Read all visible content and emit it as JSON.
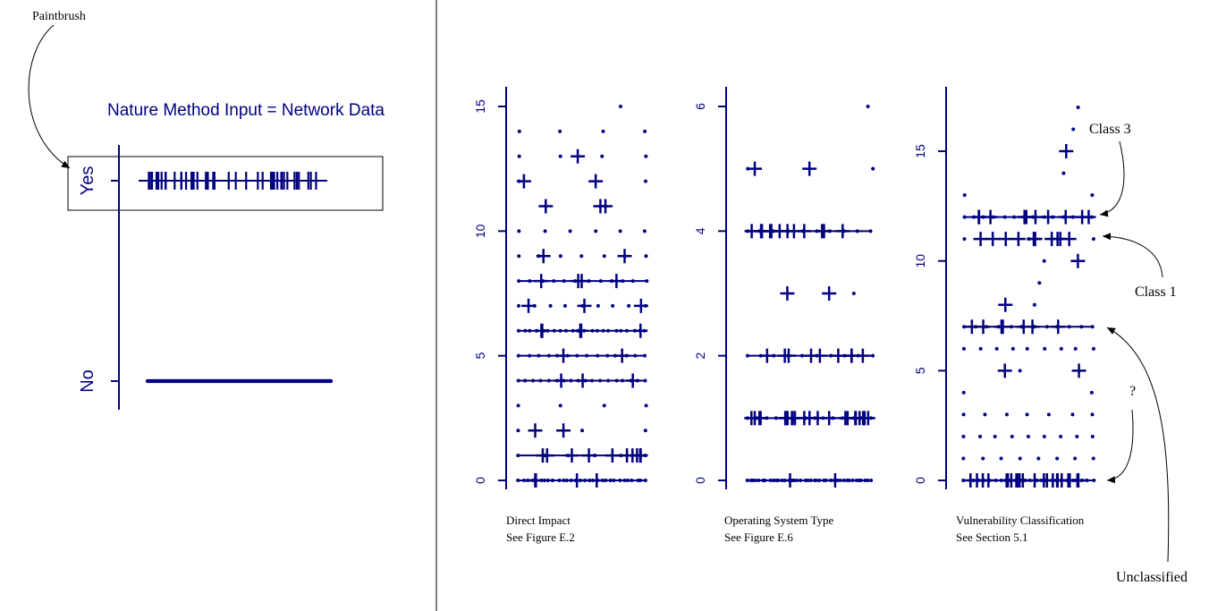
{
  "annotations": {
    "paintbrush": "Paintbrush",
    "class3": "Class 3",
    "class1": "Class 1",
    "question": "?",
    "unclassified": "Unclassified"
  },
  "colors": {
    "marks": "#000080",
    "annotation": "#000000"
  },
  "chart_data": [
    {
      "type": "scatter",
      "title": "Nature Method Input = Network Data",
      "categories": [
        "No",
        "Yes"
      ],
      "marker_legend": "dot = 0, plus = 1",
      "rows": [
        {
          "category": "Yes",
          "pluses": 45,
          "dots": 0
        },
        {
          "category": "No",
          "pluses": 0,
          "dots": 110
        }
      ]
    },
    {
      "type": "scatter",
      "title": "Direct Impact",
      "subtitle": "See Figure E.2",
      "y_ticks": [
        "0",
        "5",
        "10",
        "15"
      ],
      "ylim": [
        0,
        15
      ],
      "rows": [
        {
          "y": 15,
          "dots": 1,
          "pluses": 0
        },
        {
          "y": 14,
          "dots": 4,
          "pluses": 0
        },
        {
          "y": 13,
          "dots": 4,
          "pluses": 1
        },
        {
          "y": 12,
          "dots": 2,
          "pluses": 2
        },
        {
          "y": 11,
          "dots": 0,
          "pluses": 3
        },
        {
          "y": 10,
          "dots": 6,
          "pluses": 0
        },
        {
          "y": 9,
          "dots": 7,
          "pluses": 2
        },
        {
          "y": 8,
          "dots": 12,
          "pluses": 4
        },
        {
          "y": 7,
          "dots": 9,
          "pluses": 3
        },
        {
          "y": 6,
          "dots": 22,
          "pluses": 5
        },
        {
          "y": 5,
          "dots": 14,
          "pluses": 2
        },
        {
          "y": 4,
          "dots": 18,
          "pluses": 3
        },
        {
          "y": 3,
          "dots": 4,
          "pluses": 0
        },
        {
          "y": 2,
          "dots": 3,
          "pluses": 2
        },
        {
          "y": 1,
          "dots": 6,
          "pluses": 10
        },
        {
          "y": 0,
          "dots": 30,
          "pluses": 4
        }
      ]
    },
    {
      "type": "scatter",
      "title": "Operating System Type",
      "subtitle": "See Figure E.6",
      "y_ticks": [
        "0",
        "2",
        "4",
        "6"
      ],
      "ylim": [
        0,
        6
      ],
      "rows": [
        {
          "y": 6,
          "dots": 1,
          "pluses": 0
        },
        {
          "y": 5,
          "dots": 2,
          "pluses": 2
        },
        {
          "y": 4,
          "dots": 10,
          "pluses": 12
        },
        {
          "y": 3,
          "dots": 1,
          "pluses": 2
        },
        {
          "y": 2,
          "dots": 10,
          "pluses": 9
        },
        {
          "y": 1,
          "dots": 14,
          "pluses": 22
        },
        {
          "y": 0,
          "dots": 40,
          "pluses": 2
        }
      ]
    },
    {
      "type": "scatter",
      "title": "Vulnerability Classification",
      "subtitle": "See Section 5.1",
      "y_ticks": [
        "0",
        "5",
        "10",
        "15"
      ],
      "ylim": [
        0,
        17
      ],
      "rows": [
        {
          "y": 17,
          "dots": 1,
          "pluses": 0
        },
        {
          "y": 16,
          "dots": 1,
          "pluses": 0
        },
        {
          "y": 15,
          "dots": 0,
          "pluses": 1
        },
        {
          "y": 14,
          "dots": 1,
          "pluses": 0
        },
        {
          "y": 13,
          "dots": 2,
          "pluses": 0
        },
        {
          "y": 12,
          "dots": 14,
          "pluses": 10
        },
        {
          "y": 11,
          "dots": 3,
          "pluses": 10
        },
        {
          "y": 10,
          "dots": 1,
          "pluses": 1
        },
        {
          "y": 9,
          "dots": 1,
          "pluses": 0
        },
        {
          "y": 8,
          "dots": 1,
          "pluses": 1
        },
        {
          "y": 7,
          "dots": 12,
          "pluses": 7
        },
        {
          "y": 6,
          "dots": 9,
          "pluses": 0
        },
        {
          "y": 5,
          "dots": 1,
          "pluses": 2
        },
        {
          "y": 4,
          "dots": 2,
          "pluses": 0
        },
        {
          "y": 3,
          "dots": 7,
          "pluses": 0
        },
        {
          "y": 2,
          "dots": 9,
          "pluses": 0
        },
        {
          "y": 1,
          "dots": 8,
          "pluses": 0
        },
        {
          "y": 0,
          "dots": 26,
          "pluses": 24
        }
      ]
    }
  ]
}
